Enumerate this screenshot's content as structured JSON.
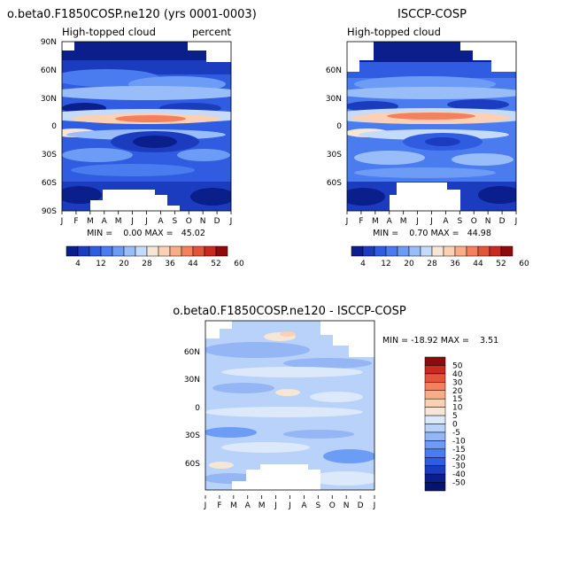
{
  "chart_data": [
    {
      "type": "heatmap",
      "title": "o.beta0.F1850COSP.ne120 (yrs 0001-0003)",
      "subtitle_left": "High-topped cloud",
      "subtitle_right": "percent",
      "x_ticks": [
        "J",
        "F",
        "M",
        "A",
        "M",
        "J",
        "J",
        "A",
        "S",
        "O",
        "N",
        "D",
        "J"
      ],
      "y_ticks": [
        "90N",
        "60N",
        "30N",
        "0",
        "30S",
        "60S",
        "90S"
      ],
      "ylim": [
        -90,
        90
      ],
      "stats": "MIN =    0.00 MAX =   45.02",
      "colorbar_ticks": [
        "4",
        "12",
        "20",
        "28",
        "36",
        "44",
        "52",
        "60"
      ],
      "colorbar_colors": [
        "#0a1e8c",
        "#1c3cc0",
        "#2f5ce0",
        "#4a7cf0",
        "#6c9cf5",
        "#98bdf8",
        "#c4dbfb",
        "#f6e6d6",
        "#fbd0b4",
        "#f9ac88",
        "#f4805d",
        "#e5533b",
        "#c9291f",
        "#8e0b0b"
      ]
    },
    {
      "type": "heatmap",
      "title": "ISCCP-COSP",
      "subtitle_left": "High-topped cloud",
      "x_ticks": [
        "J",
        "F",
        "M",
        "A",
        "M",
        "J",
        "J",
        "A",
        "S",
        "O",
        "N",
        "D",
        "J"
      ],
      "y_ticks": [
        "60N",
        "30N",
        "0",
        "30S",
        "60S"
      ],
      "stats": "MIN =    0.70 MAX =   44.98",
      "colorbar_ticks": [
        "4",
        "12",
        "20",
        "28",
        "36",
        "44",
        "52",
        "60"
      ],
      "colorbar_colors": [
        "#0a1e8c",
        "#1c3cc0",
        "#2f5ce0",
        "#4a7cf0",
        "#6c9cf5",
        "#98bdf8",
        "#c4dbfb",
        "#f6e6d6",
        "#fbd0b4",
        "#f9ac88",
        "#f4805d",
        "#e5533b",
        "#c9291f",
        "#8e0b0b"
      ]
    },
    {
      "type": "heatmap",
      "title": "o.beta0.F1850COSP.ne120 - ISCCP-COSP",
      "x_ticks": [
        "J",
        "F",
        "M",
        "A",
        "M",
        "J",
        "J",
        "A",
        "S",
        "O",
        "N",
        "D",
        "J"
      ],
      "y_ticks": [
        "60N",
        "30N",
        "0",
        "30S",
        "60S"
      ],
      "stats": "MIN = -18.92 MAX =    3.51",
      "colorbar_levels": [
        "50",
        "40",
        "30",
        "20",
        "15",
        "10",
        "5",
        "0",
        "-5",
        "-10",
        "-15",
        "-20",
        "-30",
        "-40",
        "-50"
      ],
      "colorbar_colors": [
        "#8e0b0b",
        "#c9291f",
        "#e5533b",
        "#f4805d",
        "#f9ac88",
        "#fbd0b4",
        "#f6e6d6",
        "#dce9fb",
        "#b8d2fa",
        "#94b6f5",
        "#6c9cf5",
        "#4a7cf0",
        "#2f5ce0",
        "#1c3cc0",
        "#0a1e8c",
        "#061470"
      ]
    }
  ]
}
